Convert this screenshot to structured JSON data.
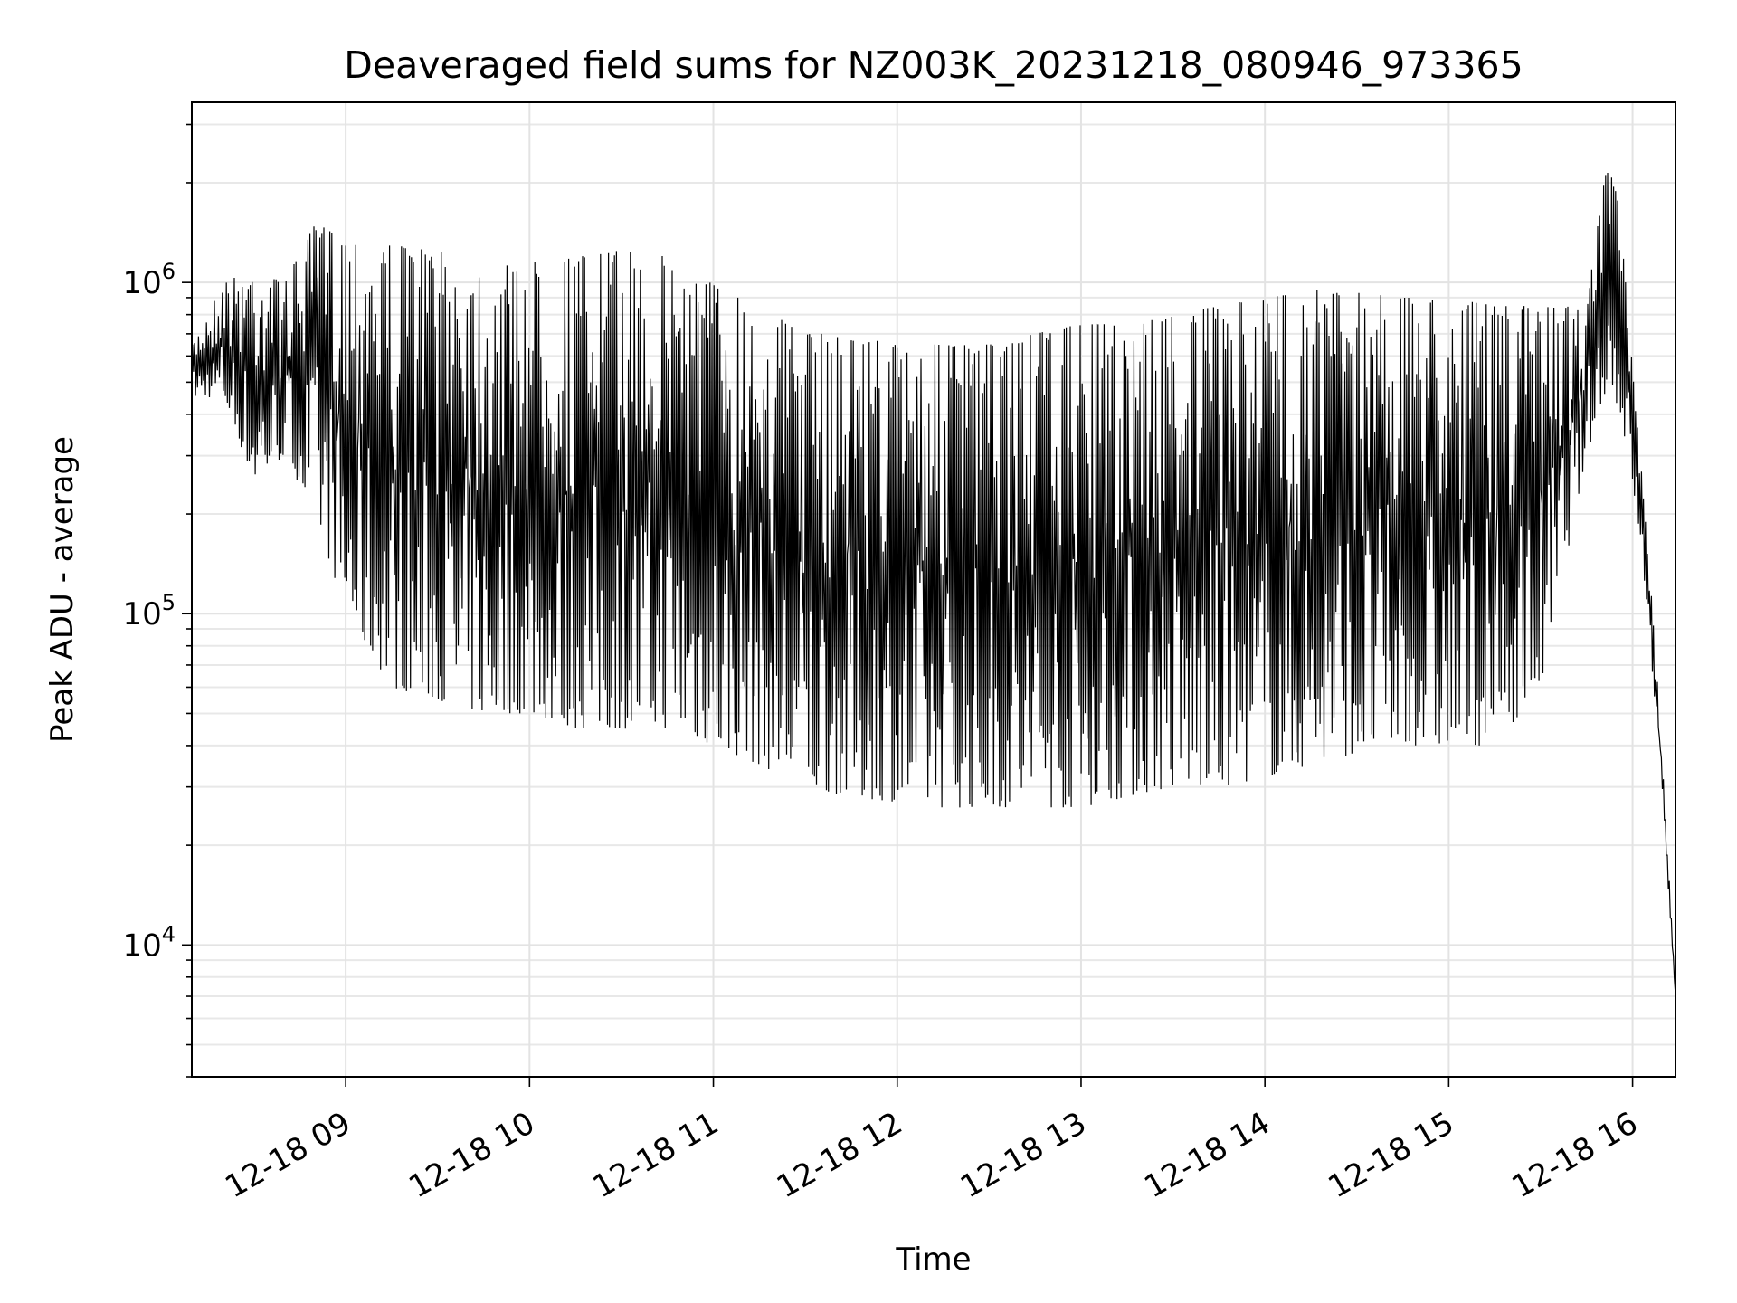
{
  "chart_data": {
    "type": "line",
    "title": "Deaveraged field sums for NZ003K_20231218_080946_973365",
    "xlabel": "Time",
    "ylabel": "Peak ADU - average",
    "x_ticks": [
      {
        "value": "2023-12-18T09:00",
        "label": "12-18 09"
      },
      {
        "value": "2023-12-18T10:00",
        "label": "12-18 10"
      },
      {
        "value": "2023-12-18T11:00",
        "label": "12-18 11"
      },
      {
        "value": "2023-12-18T12:00",
        "label": "12-18 12"
      },
      {
        "value": "2023-12-18T13:00",
        "label": "12-18 13"
      },
      {
        "value": "2023-12-18T14:00",
        "label": "12-18 14"
      },
      {
        "value": "2023-12-18T15:00",
        "label": "12-18 15"
      },
      {
        "value": "2023-12-18T16:00",
        "label": "12-18 16"
      }
    ],
    "y_ticks": [
      {
        "value": 10000,
        "base": "10",
        "exp": "4"
      },
      {
        "value": 100000,
        "base": "10",
        "exp": "5"
      },
      {
        "value": 1000000,
        "base": "10",
        "exp": "6"
      }
    ],
    "xlim": [
      "2023-12-18T08:09:46",
      "2023-12-18T16:14:00"
    ],
    "ylim": [
      4000,
      3500000
    ],
    "y_scale": "log",
    "grid": true,
    "line_color": "#000000",
    "series": [
      {
        "x": [
          "2023-12-18T08:10",
          "2023-12-18T08:20",
          "2023-12-18T08:30",
          "2023-12-18T08:40",
          "2023-12-18T08:50",
          "2023-12-18T09:00",
          "2023-12-18T09:15",
          "2023-12-18T09:30",
          "2023-12-18T09:45",
          "2023-12-18T10:00",
          "2023-12-18T10:15",
          "2023-12-18T10:30",
          "2023-12-18T10:45",
          "2023-12-18T11:00",
          "2023-12-18T11:15",
          "2023-12-18T11:30",
          "2023-12-18T11:45",
          "2023-12-18T12:00",
          "2023-12-18T12:15",
          "2023-12-18T12:30",
          "2023-12-18T12:45",
          "2023-12-18T13:00",
          "2023-12-18T13:15",
          "2023-12-18T13:30",
          "2023-12-18T13:45",
          "2023-12-18T14:00",
          "2023-12-18T14:15",
          "2023-12-18T14:30",
          "2023-12-18T14:45",
          "2023-12-18T15:00",
          "2023-12-18T15:15",
          "2023-12-18T15:30",
          "2023-12-18T15:45",
          "2023-12-18T15:52",
          "2023-12-18T15:56",
          "2023-12-18T16:00",
          "2023-12-18T16:05",
          "2023-12-18T16:10",
          "2023-12-18T16:14"
        ],
        "hi": [
          650000,
          1000000,
          1100000,
          1000000,
          1500000,
          1400000,
          1300000,
          1250000,
          1100000,
          1150000,
          1200000,
          1250000,
          1200000,
          1000000,
          850000,
          700000,
          700000,
          650000,
          650000,
          650000,
          700000,
          750000,
          750000,
          800000,
          850000,
          900000,
          950000,
          950000,
          900000,
          900000,
          850000,
          850000,
          850000,
          2500000,
          1600000,
          550000,
          160000,
          35000,
          7000
        ],
        "lo": [
          450000,
          450000,
          250000,
          300000,
          200000,
          100000,
          60000,
          55000,
          50000,
          50000,
          45000,
          45000,
          45000,
          40000,
          35000,
          30000,
          28000,
          27000,
          26000,
          26000,
          26000,
          26000,
          28000,
          30000,
          30000,
          32000,
          35000,
          38000,
          40000,
          40000,
          40000,
          60000,
          300000,
          500000,
          400000,
          250000,
          100000,
          25000,
          7000
        ]
      }
    ]
  }
}
